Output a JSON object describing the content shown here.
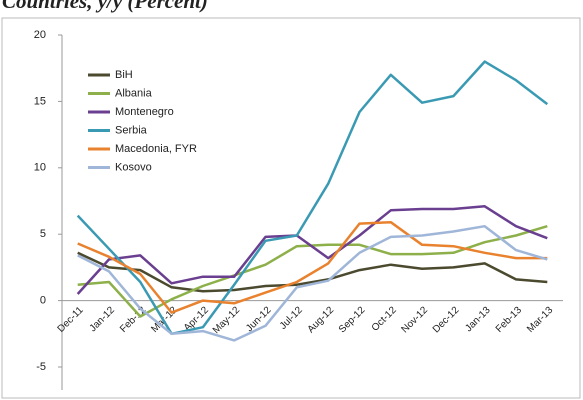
{
  "chart_data": {
    "type": "line",
    "title": "Countries, y/y (Percent)",
    "categories": [
      "Dec-11",
      "Jan-12",
      "Feb-12",
      "Mar-12",
      "Apr-12",
      "May-12",
      "Jun-12",
      "Jul-12",
      "Aug-12",
      "Sep-12",
      "Oct-12",
      "Nov-12",
      "Dec-12",
      "Jan-13",
      "Feb-13",
      "Mar-13"
    ],
    "series": [
      {
        "name": "BiH",
        "color": "#4b4a2f",
        "values": [
          3.6,
          2.5,
          2.3,
          1.0,
          0.7,
          0.8,
          1.1,
          1.2,
          1.6,
          2.3,
          2.7,
          2.4,
          2.5,
          2.8,
          1.6,
          1.4
        ]
      },
      {
        "name": "Albania",
        "color": "#8db04a",
        "values": [
          1.2,
          1.4,
          -1.2,
          0.1,
          1.1,
          1.9,
          2.7,
          4.1,
          4.2,
          4.2,
          3.5,
          3.5,
          3.6,
          4.4,
          4.9,
          5.6
        ]
      },
      {
        "name": "Montenegro",
        "color": "#6a3f90",
        "values": [
          0.5,
          3.1,
          3.4,
          1.3,
          1.8,
          1.8,
          4.8,
          4.9,
          3.2,
          4.9,
          6.8,
          6.9,
          6.9,
          7.1,
          5.6,
          4.7
        ]
      },
      {
        "name": "Serbia",
        "color": "#3b9ab3",
        "values": [
          6.4,
          3.9,
          1.4,
          -2.5,
          -2.0,
          1.2,
          4.5,
          4.9,
          8.8,
          14.2,
          17.0,
          14.9,
          15.4,
          18.0,
          16.6,
          14.8
        ]
      },
      {
        "name": "Macedonia, FYR",
        "color": "#e8822e",
        "values": [
          4.3,
          3.3,
          2.0,
          -0.9,
          0.0,
          -0.2,
          0.6,
          1.4,
          2.8,
          5.8,
          5.9,
          4.2,
          4.1,
          3.6,
          3.2,
          3.2
        ]
      },
      {
        "name": "Kosovo",
        "color": "#9fb6d9",
        "values": [
          3.4,
          2.2,
          -0.6,
          -2.5,
          -2.3,
          -3.0,
          -1.9,
          1.0,
          1.5,
          3.6,
          4.8,
          4.9,
          5.2,
          5.6,
          3.8,
          3.1
        ]
      }
    ],
    "ylim": [
      -5,
      20
    ],
    "yticks": [
      -5,
      0,
      5,
      10,
      15,
      20
    ],
    "grid": false,
    "legend": "upper left"
  }
}
